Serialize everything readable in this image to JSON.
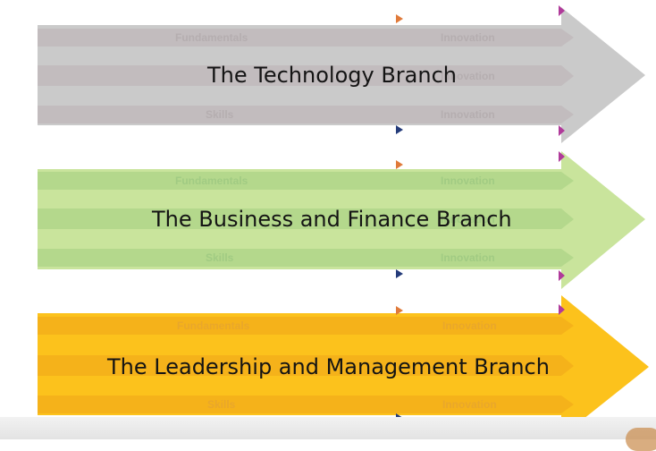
{
  "branches": [
    {
      "title": "The Technology Branch",
      "labels": {
        "fundamentals": "Fundamentals",
        "innovation": "Innovation",
        "skills": "Skills"
      },
      "colors": {
        "big": "#cacaca",
        "bar": "#c2bcbe",
        "label": "#b5aeb0"
      }
    },
    {
      "title": "The Business and Finance Branch",
      "labels": {
        "fundamentals": "Fundamentals",
        "innovation": "Innovation",
        "skills": "Skills"
      },
      "colors": {
        "big": "#c9e49c",
        "bar": "#b4d88c",
        "label": "#a1cb83"
      }
    },
    {
      "title": "The Leadership and Management Branch",
      "labels": {
        "fundamentals": "Fundamentals",
        "innovation": "Innovation",
        "skills": "Skills"
      },
      "colors": {
        "big": "#fcc21c",
        "bar": "#f5b21a",
        "label": "#e9a72b"
      }
    }
  ]
}
